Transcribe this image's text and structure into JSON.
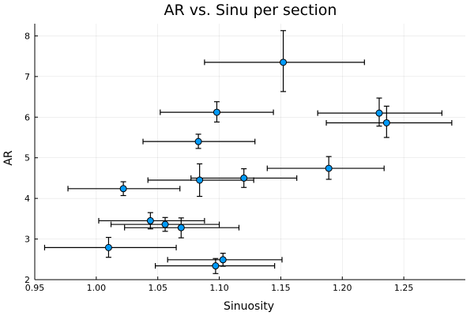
{
  "chart_data": {
    "type": "scatter",
    "title": "AR vs. Sinu per section",
    "xlabel": "Sinuosity",
    "ylabel": "AR",
    "xlim": [
      0.95,
      1.3
    ],
    "ylim": [
      2.0,
      8.3
    ],
    "x_ticks": [
      "0.95",
      "1.00",
      "1.05",
      "1.10",
      "1.15",
      "1.20",
      "1.25"
    ],
    "x_tick_values": [
      0.95,
      1.0,
      1.05,
      1.1,
      1.15,
      1.2,
      1.25
    ],
    "y_ticks": [
      "2",
      "3",
      "4",
      "5",
      "6",
      "7",
      "8"
    ],
    "y_tick_values": [
      2,
      3,
      4,
      5,
      6,
      7,
      8
    ],
    "grid": true,
    "legend": "none",
    "marker_color": "#009AFA",
    "points": [
      {
        "x": 1.152,
        "y": 7.35,
        "x_err": [
          1.088,
          1.218
        ],
        "y_err": [
          6.63,
          8.13
        ]
      },
      {
        "x": 1.098,
        "y": 6.12,
        "x_err": [
          1.052,
          1.144
        ],
        "y_err": [
          5.88,
          6.38
        ]
      },
      {
        "x": 1.23,
        "y": 6.1,
        "x_err": [
          1.18,
          1.281
        ],
        "y_err": [
          5.78,
          6.47
        ]
      },
      {
        "x": 1.236,
        "y": 5.86,
        "x_err": [
          1.187,
          1.289
        ],
        "y_err": [
          5.5,
          6.27
        ]
      },
      {
        "x": 1.083,
        "y": 5.4,
        "x_err": [
          1.038,
          1.129
        ],
        "y_err": [
          5.23,
          5.58
        ]
      },
      {
        "x": 1.189,
        "y": 4.74,
        "x_err": [
          1.139,
          1.234
        ],
        "y_err": [
          4.47,
          5.03
        ]
      },
      {
        "x": 1.12,
        "y": 4.5,
        "x_err": [
          1.077,
          1.163
        ],
        "y_err": [
          4.27,
          4.73
        ]
      },
      {
        "x": 1.084,
        "y": 4.45,
        "x_err": [
          1.042,
          1.128
        ],
        "y_err": [
          4.05,
          4.85
        ]
      },
      {
        "x": 1.022,
        "y": 4.24,
        "x_err": [
          0.977,
          1.068
        ],
        "y_err": [
          4.07,
          4.41
        ]
      },
      {
        "x": 1.044,
        "y": 3.45,
        "x_err": [
          1.002,
          1.088
        ],
        "y_err": [
          3.25,
          3.65
        ]
      },
      {
        "x": 1.056,
        "y": 3.36,
        "x_err": [
          1.012,
          1.1
        ],
        "y_err": [
          3.19,
          3.53
        ]
      },
      {
        "x": 1.069,
        "y": 3.28,
        "x_err": [
          1.023,
          1.116
        ],
        "y_err": [
          3.03,
          3.52
        ]
      },
      {
        "x": 1.01,
        "y": 2.79,
        "x_err": [
          0.958,
          1.065
        ],
        "y_err": [
          2.55,
          3.04
        ]
      },
      {
        "x": 1.103,
        "y": 2.49,
        "x_err": [
          1.058,
          1.151
        ],
        "y_err": [
          2.33,
          2.65
        ]
      },
      {
        "x": 1.097,
        "y": 2.34,
        "x_err": [
          1.048,
          1.145
        ],
        "y_err": [
          2.15,
          2.52
        ]
      }
    ]
  }
}
